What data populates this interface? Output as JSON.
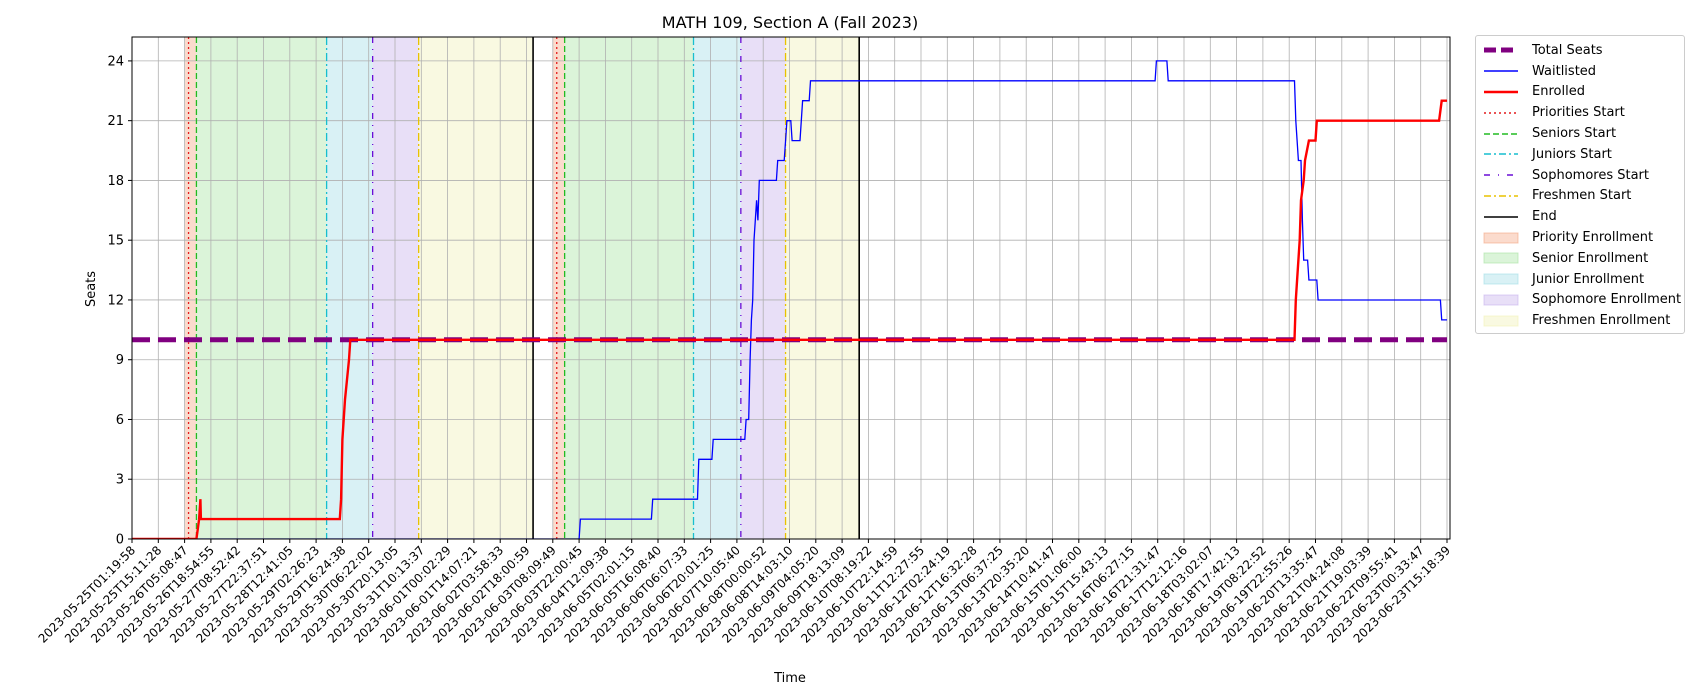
{
  "chart_data": {
    "type": "line",
    "title": "MATH 109, Section A (Fall 2023)",
    "xlabel": "Time",
    "ylabel": "Seats",
    "ylim": [
      0,
      25.2
    ],
    "yticks": [
      0,
      3,
      6,
      9,
      12,
      15,
      18,
      21,
      24
    ],
    "grid": true,
    "legend_position": "outside-top-right",
    "x_range": [
      "2023-05-25T01:19:58",
      "2023-06-23T15:18:39"
    ],
    "xtick_labels": [
      "2023-05-25T01:19:58",
      "2023-05-25T15:11:28",
      "2023-05-26T05:08:47",
      "2023-05-26T18:54:55",
      "2023-05-27T08:52:42",
      "2023-05-27T22:37:51",
      "2023-05-28T12:41:05",
      "2023-05-29T02:26:23",
      "2023-05-29T16:24:38",
      "2023-05-30T06:22:02",
      "2023-05-30T20:13:05",
      "2023-05-31T10:13:37",
      "2023-06-01T00:02:29",
      "2023-06-01T14:07:21",
      "2023-06-02T03:58:33",
      "2023-06-02T18:00:59",
      "2023-06-03T08:09:49",
      "2023-06-03T22:00:45",
      "2023-06-04T12:09:38",
      "2023-06-05T02:01:15",
      "2023-06-05T16:08:40",
      "2023-06-06T06:07:33",
      "2023-06-06T20:01:25",
      "2023-06-07T10:05:40",
      "2023-06-08T00:00:52",
      "2023-06-08T14:03:10",
      "2023-06-09T04:05:20",
      "2023-06-09T18:13:09",
      "2023-06-10T08:19:22",
      "2023-06-10T22:14:59",
      "2023-06-11T12:27:55",
      "2023-06-12T02:24:19",
      "2023-06-12T16:32:28",
      "2023-06-13T06:37:25",
      "2023-06-13T20:35:20",
      "2023-06-14T10:41:47",
      "2023-06-15T01:06:00",
      "2023-06-15T15:43:13",
      "2023-06-16T06:27:15",
      "2023-06-16T21:31:47",
      "2023-06-17T12:12:16",
      "2023-06-18T03:02:07",
      "2023-06-18T17:42:13",
      "2023-06-19T08:22:52",
      "2023-06-19T22:55:26",
      "2023-06-20T13:35:47",
      "2023-06-21T04:24:08",
      "2023-06-21T19:03:39",
      "2023-06-22T09:55:41",
      "2023-06-23T00:33:47",
      "2023-06-23T15:18:39"
    ],
    "phases": [
      {
        "name": "Priority Enrollment",
        "start": 2.0,
        "end": 2.45,
        "color": "#f4a582"
      },
      {
        "name": "Senior Enrollment",
        "start": 2.45,
        "end": 7.4,
        "color": "#a6e3a1"
      },
      {
        "name": "Junior Enrollment",
        "start": 7.4,
        "end": 9.15,
        "color": "#9fdde6"
      },
      {
        "name": "Sophomore Enrollment",
        "start": 9.15,
        "end": 10.9,
        "color": "#c5b0ec"
      },
      {
        "name": "Freshmen Enrollment",
        "start": 10.9,
        "end": 15.25,
        "color": "#f1f1b5"
      },
      {
        "name": "Priority Enrollment",
        "start": 16.0,
        "end": 16.45,
        "color": "#f4a582"
      },
      {
        "name": "Senior Enrollment",
        "start": 16.45,
        "end": 21.35,
        "color": "#a6e3a1"
      },
      {
        "name": "Junior Enrollment",
        "start": 21.35,
        "end": 23.15,
        "color": "#9fdde6"
      },
      {
        "name": "Sophomore Enrollment",
        "start": 23.15,
        "end": 24.85,
        "color": "#c5b0ec"
      },
      {
        "name": "Freshmen Enrollment",
        "start": 24.85,
        "end": 27.65,
        "color": "#f1f1b5"
      }
    ],
    "markers": [
      {
        "name": "Priorities Start",
        "x": [
          2.15,
          16.15
        ],
        "color": "#e41a1c",
        "dash": "2,3"
      },
      {
        "name": "Seniors Start",
        "x": [
          2.45,
          16.45
        ],
        "color": "#22bb22",
        "dash": "6,3"
      },
      {
        "name": "Juniors Start",
        "x": [
          7.4,
          21.35
        ],
        "color": "#17becf",
        "dash": "8,3,2,3"
      },
      {
        "name": "Sophomores Start",
        "x": [
          9.15,
          23.15
        ],
        "color": "#6a0dd6",
        "dash": "6,6,1,6"
      },
      {
        "name": "Freshmen Start",
        "x": [
          10.9,
          24.85
        ],
        "color": "#e8c200",
        "dash": "8,3,2,3"
      },
      {
        "name": "End",
        "x": [
          15.25,
          27.65
        ],
        "color": "#000000",
        "dash": ""
      }
    ],
    "series": [
      {
        "name": "Total Seats",
        "color": "#800080",
        "points": [
          [
            0,
            10
          ],
          [
            50,
            10
          ]
        ]
      },
      {
        "name": "Waitlisted",
        "color": "#0000ff",
        "points": [
          [
            0,
            0
          ],
          [
            17,
            0
          ],
          [
            17.05,
            1
          ],
          [
            19.75,
            1
          ],
          [
            19.8,
            2
          ],
          [
            21.5,
            2
          ],
          [
            21.55,
            4
          ],
          [
            22.05,
            4
          ],
          [
            22.1,
            5
          ],
          [
            23.15,
            5
          ],
          [
            23.2,
            5
          ],
          [
            23.3,
            5
          ],
          [
            23.35,
            6
          ],
          [
            23.45,
            6
          ],
          [
            23.5,
            9
          ],
          [
            23.55,
            11
          ],
          [
            23.6,
            12
          ],
          [
            23.65,
            15
          ],
          [
            23.7,
            16
          ],
          [
            23.75,
            17
          ],
          [
            23.8,
            16
          ],
          [
            23.85,
            18
          ],
          [
            24.5,
            18
          ],
          [
            24.55,
            19
          ],
          [
            24.8,
            19
          ],
          [
            24.85,
            20
          ],
          [
            24.9,
            21
          ],
          [
            25.05,
            21
          ],
          [
            25.1,
            20
          ],
          [
            25.4,
            20
          ],
          [
            25.45,
            21
          ],
          [
            25.5,
            22
          ],
          [
            25.75,
            22
          ],
          [
            25.8,
            23
          ],
          [
            38.9,
            23
          ],
          [
            38.95,
            24
          ],
          [
            39.35,
            24
          ],
          [
            39.4,
            23
          ],
          [
            44.2,
            23
          ],
          [
            44.25,
            21
          ],
          [
            44.3,
            20
          ],
          [
            44.35,
            19
          ],
          [
            44.45,
            19
          ],
          [
            44.5,
            16
          ],
          [
            44.55,
            14
          ],
          [
            44.7,
            14
          ],
          [
            44.75,
            13
          ],
          [
            45.05,
            13
          ],
          [
            45.1,
            12
          ],
          [
            49.75,
            12
          ],
          [
            49.8,
            11
          ],
          [
            50,
            11
          ]
        ]
      },
      {
        "name": "Enrolled",
        "color": "#ff0000",
        "points": [
          [
            0,
            0
          ],
          [
            2.45,
            0
          ],
          [
            2.5,
            0.5
          ],
          [
            2.55,
            1
          ],
          [
            2.6,
            2
          ],
          [
            2.62,
            1
          ],
          [
            7.9,
            1
          ],
          [
            7.95,
            2
          ],
          [
            8.0,
            5
          ],
          [
            8.1,
            7
          ],
          [
            8.25,
            9
          ],
          [
            8.3,
            10
          ],
          [
            44.2,
            10
          ],
          [
            44.25,
            12
          ],
          [
            44.3,
            13
          ],
          [
            44.35,
            14
          ],
          [
            44.4,
            15
          ],
          [
            44.45,
            17
          ],
          [
            44.55,
            18
          ],
          [
            44.6,
            19
          ],
          [
            44.75,
            20
          ],
          [
            45.0,
            20
          ],
          [
            45.05,
            21
          ],
          [
            49.7,
            21
          ],
          [
            49.8,
            22
          ],
          [
            50,
            22
          ]
        ]
      }
    ]
  },
  "legend": [
    {
      "label": "Total Seats",
      "kind": "thickdash",
      "color": "#800080"
    },
    {
      "label": "Waitlisted",
      "kind": "line",
      "color": "#0000ff"
    },
    {
      "label": "Enrolled",
      "kind": "thickline",
      "color": "#ff0000"
    },
    {
      "label": "Priorities Start",
      "kind": "dotted",
      "color": "#e41a1c"
    },
    {
      "label": "Seniors Start",
      "kind": "dashed",
      "color": "#22bb22"
    },
    {
      "label": "Juniors Start",
      "kind": "dashdot",
      "color": "#17becf"
    },
    {
      "label": "Sophomores Start",
      "kind": "sparsedash",
      "color": "#6a0dd6"
    },
    {
      "label": "Freshmen Start",
      "kind": "dashdot",
      "color": "#e8c200"
    },
    {
      "label": "End",
      "kind": "line",
      "color": "#000000"
    },
    {
      "label": "Priority Enrollment",
      "kind": "patch",
      "color": "#f4a582"
    },
    {
      "label": "Senior Enrollment",
      "kind": "patch",
      "color": "#a6e3a1"
    },
    {
      "label": "Junior Enrollment",
      "kind": "patch",
      "color": "#9fdde6"
    },
    {
      "label": "Sophomore Enrollment",
      "kind": "patch",
      "color": "#c5b0ec"
    },
    {
      "label": "Freshmen Enrollment",
      "kind": "patch",
      "color": "#f1f1b5"
    }
  ]
}
